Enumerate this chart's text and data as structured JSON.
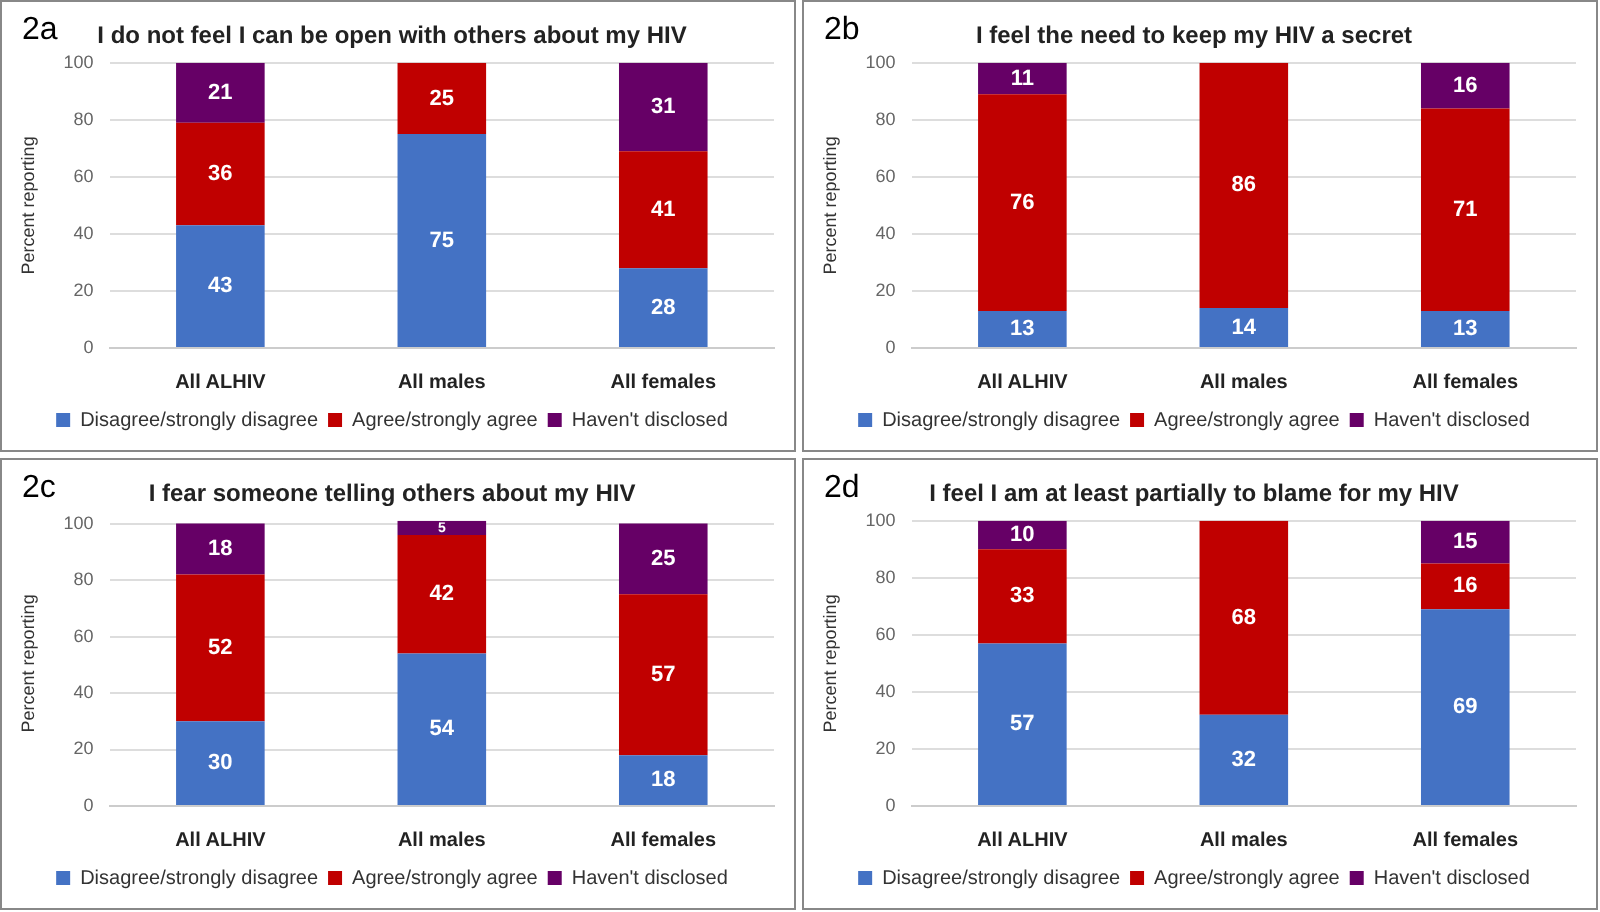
{
  "chart_data": [
    {
      "type": "bar",
      "title": "I do not feel I can be open with others about my HIV",
      "ylabel": "Percent reporting",
      "annotations": [
        "2a"
      ],
      "categories": [
        "All ALHIV",
        "All males",
        "All females"
      ],
      "stacked": true,
      "data_labels": true,
      "grid": "y",
      "legend": "bottom",
      "ylim": [
        0,
        100
      ],
      "yticks": [
        0,
        20,
        40,
        60,
        80,
        100
      ],
      "series": [
        {
          "name": "Disagree/strongly disagree",
          "color": "#4472c4",
          "values": [
            43,
            75,
            28
          ]
        },
        {
          "name": "Agree/strongly agree",
          "color": "#c00000",
          "values": [
            36,
            25,
            41
          ]
        },
        {
          "name": "Haven't disclosed",
          "color": "#660066",
          "values": [
            21,
            null,
            31
          ]
        }
      ]
    },
    {
      "type": "bar",
      "title": "I feel the need to keep my HIV a secret",
      "ylabel": "Percent reporting",
      "annotations": [
        "2b"
      ],
      "categories": [
        "All ALHIV",
        "All males",
        "All females"
      ],
      "stacked": true,
      "data_labels": true,
      "grid": "y",
      "legend": "bottom",
      "ylim": [
        0,
        100
      ],
      "yticks": [
        0,
        20,
        40,
        60,
        80,
        100
      ],
      "series": [
        {
          "name": "Disagree/strongly disagree",
          "color": "#4472c4",
          "values": [
            13,
            14,
            13
          ]
        },
        {
          "name": "Agree/strongly agree",
          "color": "#c00000",
          "values": [
            76,
            86,
            71
          ]
        },
        {
          "name": "Haven't disclosed",
          "color": "#660066",
          "values": [
            11,
            null,
            16
          ]
        }
      ]
    },
    {
      "type": "bar",
      "title": "I fear someone telling others about my HIV",
      "ylabel": "Percent reporting",
      "annotations": [
        "2c"
      ],
      "categories": [
        "All ALHIV",
        "All males",
        "All females"
      ],
      "stacked": true,
      "data_labels": true,
      "grid": "y",
      "legend": "bottom",
      "ylim": [
        0,
        101
      ],
      "yticks": [
        0,
        20,
        40,
        60,
        80,
        100
      ],
      "series": [
        {
          "name": "Disagree/strongly disagree",
          "color": "#4472c4",
          "values": [
            30,
            54,
            18
          ]
        },
        {
          "name": "Agree/strongly agree",
          "color": "#c00000",
          "values": [
            52,
            42,
            57
          ]
        },
        {
          "name": "Haven't disclosed",
          "color": "#660066",
          "values": [
            18,
            5,
            25
          ]
        }
      ]
    },
    {
      "type": "bar",
      "title": "I feel I am at least partially to blame for my HIV",
      "ylabel": "Percent reporting",
      "annotations": [
        "2d"
      ],
      "categories": [
        "All ALHIV",
        "All males",
        "All females"
      ],
      "stacked": true,
      "data_labels": true,
      "grid": "y",
      "legend": "bottom",
      "ylim": [
        0,
        100
      ],
      "yticks": [
        0,
        20,
        40,
        60,
        80,
        100
      ],
      "series": [
        {
          "name": "Disagree/strongly disagree",
          "color": "#4472c4",
          "values": [
            57,
            32,
            69
          ]
        },
        {
          "name": "Agree/strongly agree",
          "color": "#c00000",
          "values": [
            33,
            68,
            16
          ]
        },
        {
          "name": "Haven't disclosed",
          "color": "#660066",
          "values": [
            10,
            null,
            15
          ]
        }
      ]
    }
  ]
}
